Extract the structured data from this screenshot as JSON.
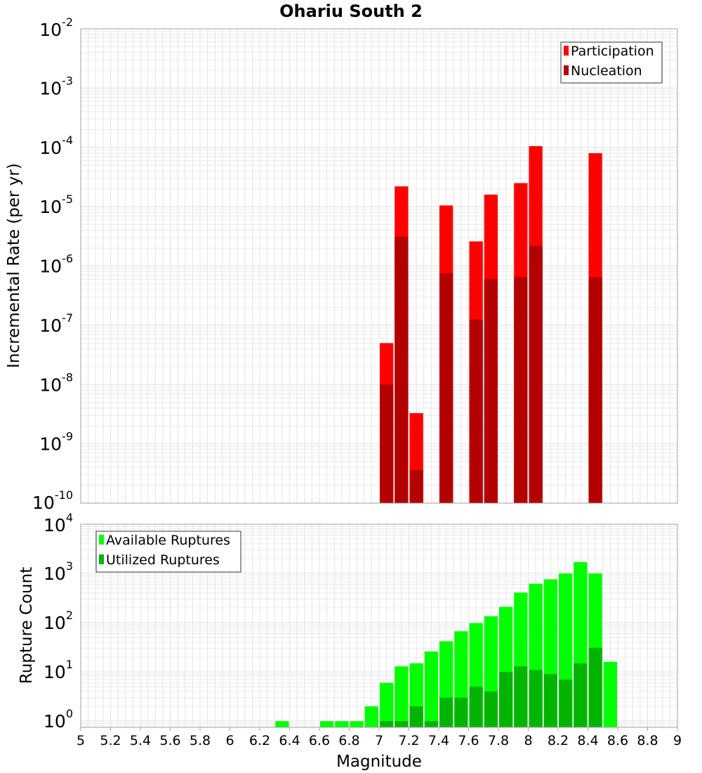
{
  "title": "Ohariu South 2",
  "xlabel": "Magnitude",
  "colors": {
    "participation": "#ff0000",
    "nucleation": "#b30000",
    "available": "#00ff00",
    "utilized": "#00b400",
    "grid": "#e4e4e4",
    "frame": "#a0a0a0"
  },
  "x_ticks": [
    "5",
    "5.2",
    "5.4",
    "5.6",
    "5.8",
    "6",
    "6.2",
    "6.4",
    "6.6",
    "6.8",
    "7",
    "7.2",
    "7.4",
    "7.6",
    "7.8",
    "8",
    "8.2",
    "8.4",
    "8.6",
    "8.8",
    "9"
  ],
  "chart_data": [
    {
      "type": "bar",
      "scale": "log",
      "ylabel": "Incremental Rate (per yr)",
      "xlim": [
        5,
        9
      ],
      "ylim": [
        1e-10,
        0.01
      ],
      "bin_width": 0.1,
      "y_ticks": [
        {
          "base": "10",
          "exp": "-2",
          "value": 0.01
        },
        {
          "base": "10",
          "exp": "-3",
          "value": 0.001
        },
        {
          "base": "10",
          "exp": "-4",
          "value": 0.0001
        },
        {
          "base": "10",
          "exp": "-5",
          "value": 1e-05
        },
        {
          "base": "10",
          "exp": "-6",
          "value": 1e-06
        },
        {
          "base": "10",
          "exp": "-7",
          "value": 1e-07
        },
        {
          "base": "10",
          "exp": "-8",
          "value": 1e-08
        },
        {
          "base": "10",
          "exp": "-9",
          "value": 1e-09
        },
        {
          "base": "10",
          "exp": "-10",
          "value": 1e-10
        }
      ],
      "legend_position": "top-right",
      "series": [
        {
          "name": "Participation",
          "x": [
            7.05,
            7.15,
            7.25,
            7.45,
            7.65,
            7.75,
            7.95,
            8.05,
            8.45
          ],
          "values": [
            5e-08,
            2.2e-05,
            3.3e-09,
            1.05e-05,
            2.6e-06,
            1.6e-05,
            2.5e-05,
            0.000105,
            8e-05
          ]
        },
        {
          "name": "Nucleation",
          "x": [
            7.05,
            7.15,
            7.25,
            7.45,
            7.65,
            7.75,
            7.95,
            8.05,
            8.45
          ],
          "values": [
            1e-08,
            3.1e-06,
            3.6e-10,
            7.5e-07,
            1.25e-07,
            6e-07,
            6.5e-07,
            2.2e-06,
            6.5e-07
          ]
        }
      ]
    },
    {
      "type": "bar",
      "scale": "log",
      "ylabel": "Rupture Count",
      "xlim": [
        5,
        9
      ],
      "ylim": [
        0.75,
        10000
      ],
      "bin_width": 0.1,
      "y_ticks": [
        {
          "base": "10",
          "exp": "4",
          "value": 10000
        },
        {
          "base": "10",
          "exp": "3",
          "value": 1000
        },
        {
          "base": "10",
          "exp": "2",
          "value": 100
        },
        {
          "base": "10",
          "exp": "1",
          "value": 10
        },
        {
          "base": "10",
          "exp": "0",
          "value": 1
        }
      ],
      "legend_position": "top-left",
      "series": [
        {
          "name": "Available Ruptures",
          "x": [
            6.35,
            6.65,
            6.75,
            6.85,
            6.95,
            7.05,
            7.15,
            7.25,
            7.35,
            7.45,
            7.55,
            7.65,
            7.75,
            7.85,
            7.95,
            8.05,
            8.15,
            8.25,
            8.35,
            8.45,
            8.55
          ],
          "values": [
            1,
            1,
            1,
            1,
            2,
            6,
            13,
            15,
            26,
            42,
            67,
            98,
            135,
            210,
            410,
            620,
            760,
            1000,
            1700,
            1000,
            16
          ]
        },
        {
          "name": "Utilized Ruptures",
          "x": [
            7.05,
            7.15,
            7.25,
            7.35,
            7.45,
            7.55,
            7.65,
            7.75,
            7.85,
            7.95,
            8.05,
            8.15,
            8.25,
            8.35,
            8.45
          ],
          "values": [
            1,
            1,
            2,
            1,
            3,
            3,
            5,
            4,
            10,
            13,
            11,
            9,
            7,
            15,
            31
          ]
        }
      ]
    }
  ]
}
